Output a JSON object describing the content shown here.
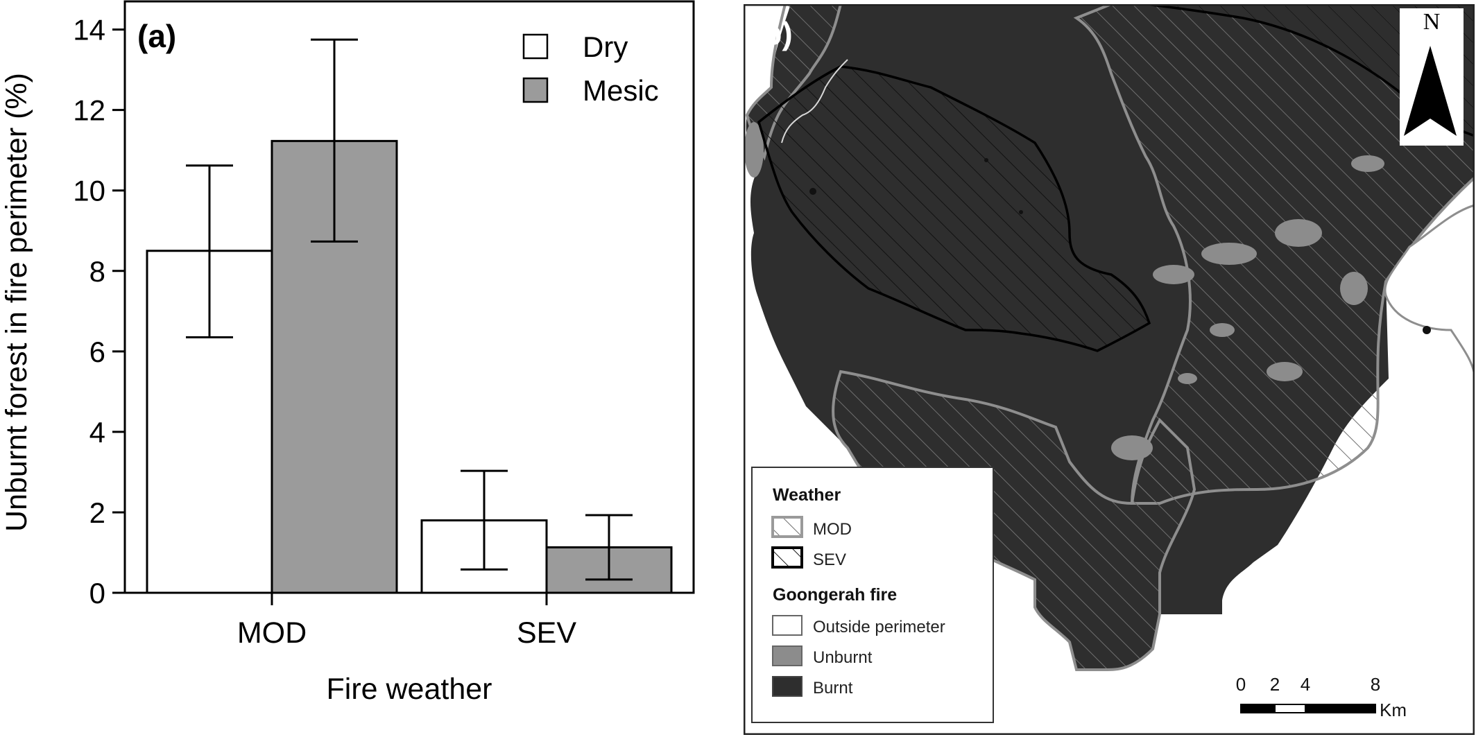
{
  "chart_data": {
    "type": "bar",
    "panel_label": "(a)",
    "xlabel": "Fire weather",
    "ylabel": "Unburnt forest in fire perimeter (%)",
    "categories": [
      "MOD",
      "SEV"
    ],
    "ylim": [
      0,
      14.7
    ],
    "yticks": [
      0,
      2,
      4,
      6,
      8,
      10,
      12,
      14
    ],
    "grid": false,
    "legend_position": "top-right",
    "series": [
      {
        "name": "Dry",
        "color": "#ffffff",
        "values": [
          8.5,
          1.8
        ],
        "err_low": [
          6.35,
          0.58
        ],
        "err_high": [
          10.62,
          3.03
        ]
      },
      {
        "name": "Mesic",
        "color": "#9b9b9b",
        "values": [
          11.23,
          1.13
        ],
        "err_low": [
          8.73,
          0.33
        ],
        "err_high": [
          13.75,
          1.93
        ]
      }
    ]
  },
  "map": {
    "panel_label": "(b)",
    "north_label": "N",
    "legend": {
      "weather_title": "Weather",
      "weather_items": [
        {
          "label": "MOD",
          "symbol": "light-hatch"
        },
        {
          "label": "SEV",
          "symbol": "dark-hatch"
        }
      ],
      "fire_title": "Goongerah fire",
      "fire_items": [
        {
          "label": "Outside perimeter",
          "color": "#ffffff"
        },
        {
          "label": "Unburnt",
          "color": "#8c8c8c"
        },
        {
          "label": "Burnt",
          "color": "#2e2e2e"
        }
      ]
    },
    "scale_bar": {
      "ticks": [
        "0",
        "2",
        "4",
        "8"
      ],
      "unit": "Km"
    }
  }
}
